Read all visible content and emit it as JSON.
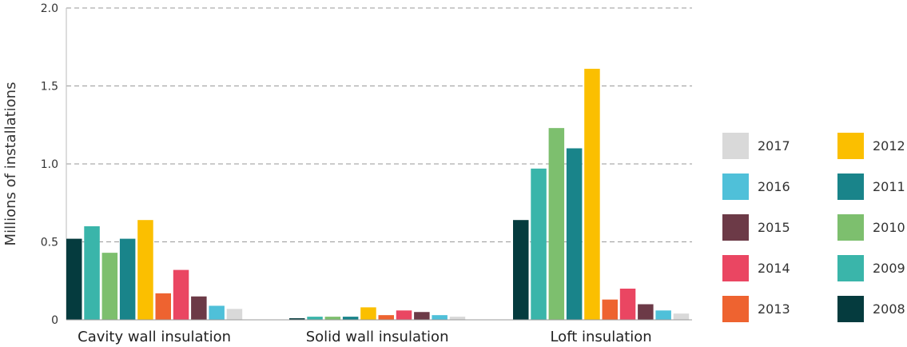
{
  "chart_data": {
    "type": "bar",
    "title": "",
    "xlabel": "",
    "ylabel": "Millions of installations",
    "ylim": [
      0,
      2.0
    ],
    "yticks": [
      "0",
      "0.5",
      "1.0",
      "1.5",
      "2.0"
    ],
    "grid": true,
    "legend_position": "right",
    "categories": [
      "Cavity wall insulation",
      "Solid wall insulation",
      "Loft insulation"
    ],
    "series": [
      {
        "name": "2008",
        "color": "#053b3e",
        "values": [
          0.52,
          0.01,
          0.64
        ]
      },
      {
        "name": "2009",
        "color": "#3ab5aa",
        "values": [
          0.6,
          0.02,
          0.97
        ]
      },
      {
        "name": "2010",
        "color": "#7dbf6e",
        "values": [
          0.43,
          0.02,
          1.23
        ]
      },
      {
        "name": "2011",
        "color": "#19848a",
        "values": [
          0.52,
          0.02,
          1.1
        ]
      },
      {
        "name": "2012",
        "color": "#fbbf00",
        "values": [
          0.64,
          0.08,
          1.61
        ]
      },
      {
        "name": "2013",
        "color": "#ee6330",
        "values": [
          0.17,
          0.03,
          0.13
        ]
      },
      {
        "name": "2014",
        "color": "#ea4662",
        "values": [
          0.32,
          0.06,
          0.2
        ]
      },
      {
        "name": "2015",
        "color": "#6c3a47",
        "values": [
          0.15,
          0.05,
          0.1
        ]
      },
      {
        "name": "2016",
        "color": "#4fc0d9",
        "values": [
          0.09,
          0.03,
          0.06
        ]
      },
      {
        "name": "2017",
        "color": "#d9d9d9",
        "values": [
          0.07,
          0.02,
          0.04
        ]
      }
    ],
    "legend_order": [
      "2017",
      "2012",
      "2016",
      "2011",
      "2015",
      "2010",
      "2014",
      "2009",
      "2013",
      "2008"
    ]
  }
}
